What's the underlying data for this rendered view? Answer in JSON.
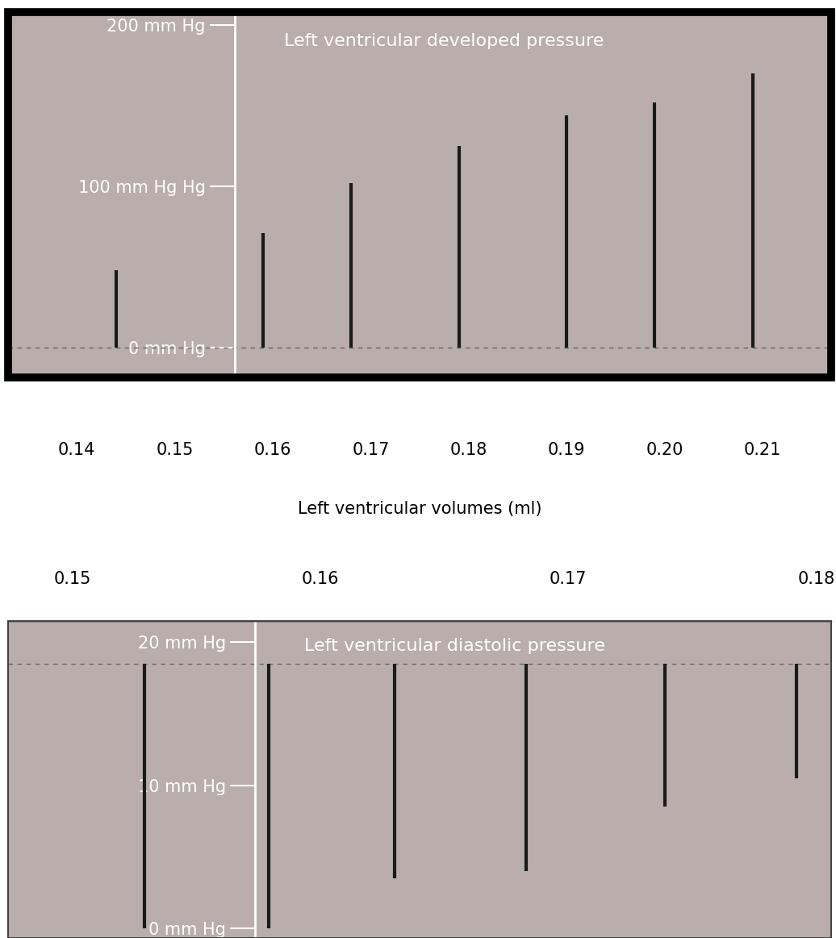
{
  "chart_data": [
    {
      "type": "spike",
      "title": "Left ventricular developed pressure",
      "x": [
        0.144,
        0.159,
        0.168,
        0.179,
        0.19,
        0.199,
        0.209
      ],
      "values": [
        48,
        71,
        102,
        125,
        144,
        152,
        170
      ],
      "baseline": 0,
      "color": "#1a1a1a",
      "xlim": [
        0.133,
        0.217
      ],
      "xticks": [
        0.14,
        0.15,
        0.16,
        0.17,
        0.18,
        0.19,
        {
          "value": 0.2,
          "label": "0.20"
        },
        0.21
      ],
      "xlabel": "Left ventricular volumes (ml)",
      "ylim": [
        -18,
        208
      ],
      "yticks": [
        {
          "value": 0,
          "label": "0 mm Hg"
        },
        {
          "value": 100,
          "label": "100 mm Hg Hg"
        },
        {
          "value": 200,
          "label": "200 mm Hg"
        }
      ]
    },
    {
      "type": "spike",
      "title": "Left ventricular diastolic pressure",
      "x": [
        0.1529,
        0.1579,
        0.163,
        0.1683,
        0.1739,
        0.1792
      ],
      "values": [
        0,
        0,
        3.5,
        4,
        8.5,
        10.5
      ],
      "baseline": 18.5,
      "color": "#1a1a1a",
      "xlim": [
        0.1474,
        0.1806
      ],
      "xticks": [
        0.15,
        0.16,
        0.17,
        0.18
      ],
      "ylim": [
        -0.7,
        21.5
      ],
      "yticks": [
        {
          "value": 0,
          "label": "0 mm Hg"
        },
        {
          "value": 10,
          "label": "10 mm Hg"
        },
        {
          "value": 20,
          "label": "20 mm Hg"
        }
      ]
    }
  ]
}
